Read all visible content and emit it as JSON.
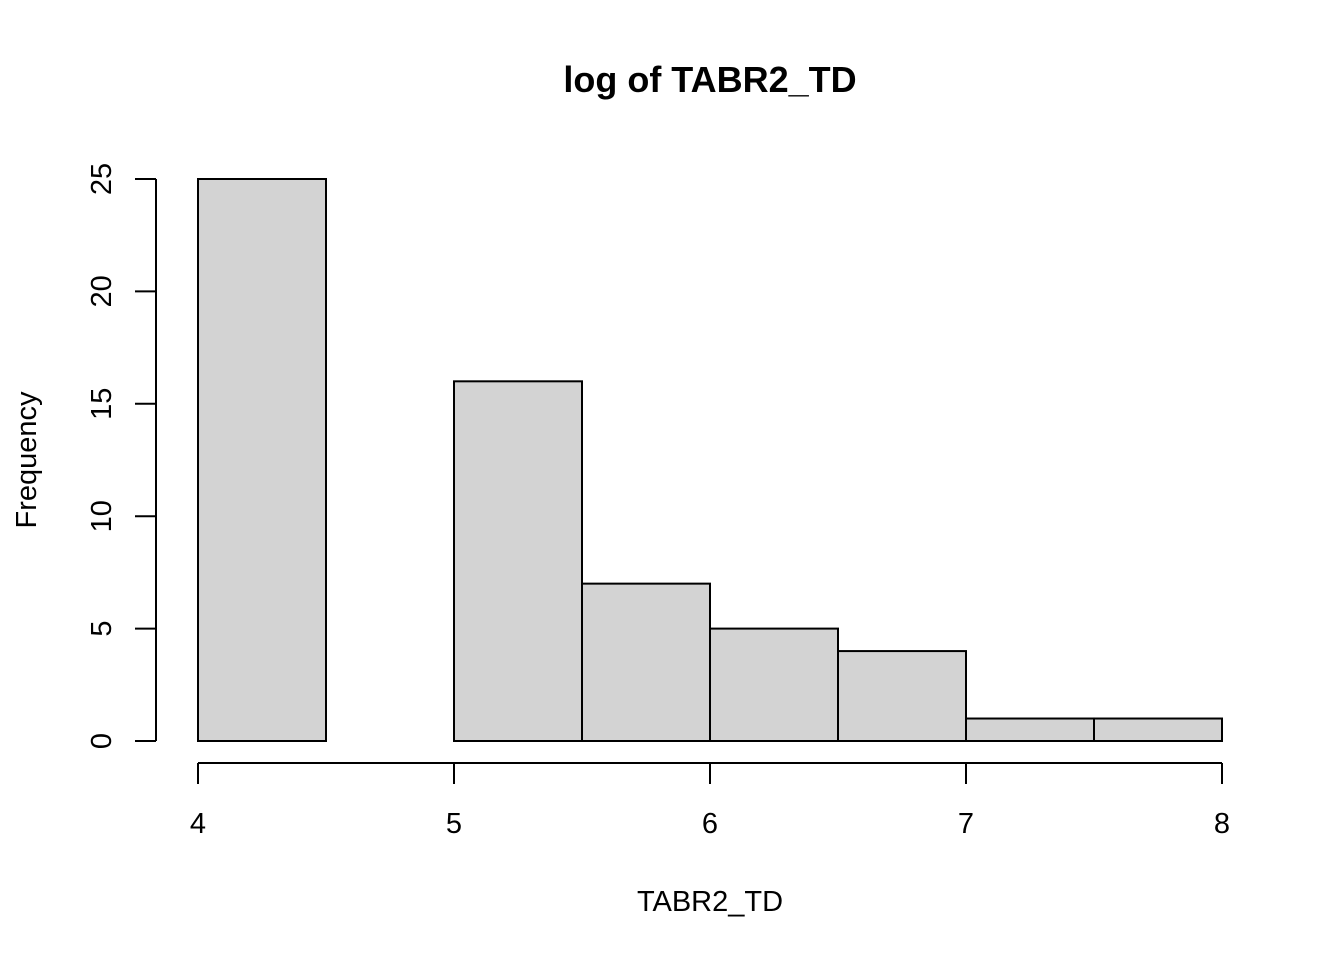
{
  "chart_data": {
    "type": "histogram",
    "title": "log of TABR2_TD",
    "xlabel": "TABR2_TD",
    "ylabel": "Frequency",
    "bin_edges": [
      4,
      4.5,
      5,
      5.5,
      6,
      6.5,
      7,
      7.5,
      8
    ],
    "counts": [
      25,
      0,
      16,
      7,
      5,
      4,
      1,
      1
    ],
    "xlim": [
      4,
      8
    ],
    "ylim": [
      0,
      25
    ],
    "x_ticks": [
      4,
      5,
      6,
      7,
      8
    ],
    "y_ticks": [
      0,
      5,
      10,
      15,
      20,
      25
    ],
    "bar_fill": "#d3d3d3",
    "bar_stroke": "#000000",
    "grid": false,
    "legend": "none"
  }
}
